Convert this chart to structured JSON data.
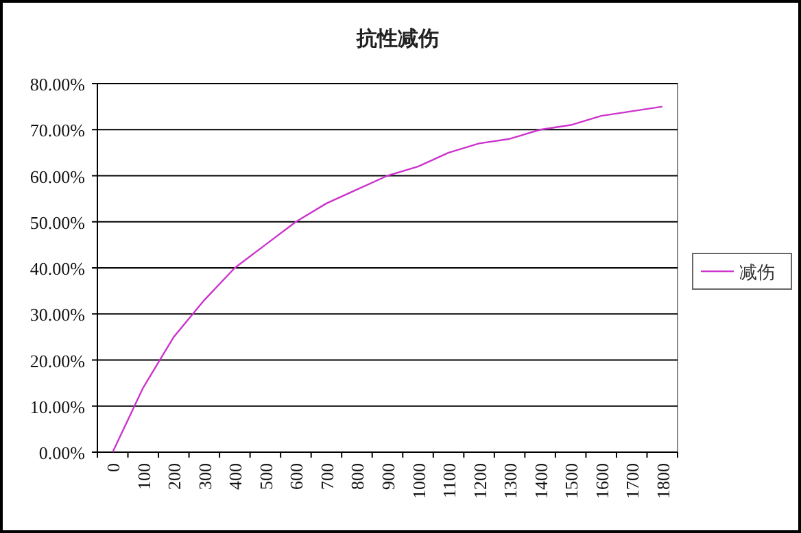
{
  "chart_data": {
    "type": "line",
    "title": "抗性减伤",
    "categories": [
      "0",
      "100",
      "200",
      "300",
      "400",
      "500",
      "600",
      "700",
      "800",
      "900",
      "1000",
      "1100",
      "1200",
      "1300",
      "1400",
      "1500",
      "1600",
      "1700",
      "1800"
    ],
    "series": [
      {
        "name": "减伤",
        "color": "#cc33cc",
        "values": [
          0,
          14,
          25,
          33,
          40,
          45,
          50,
          54,
          57,
          60,
          62,
          65,
          67,
          68,
          70,
          71,
          73,
          74,
          75
        ]
      }
    ],
    "ylim": [
      0,
      80
    ],
    "yticks": [
      {
        "value": 0,
        "label": "0.00%"
      },
      {
        "value": 10,
        "label": "10.00%"
      },
      {
        "value": 20,
        "label": "20.00%"
      },
      {
        "value": 30,
        "label": "30.00%"
      },
      {
        "value": 40,
        "label": "40.00%"
      },
      {
        "value": 50,
        "label": "50.00%"
      },
      {
        "value": 60,
        "label": "60.00%"
      },
      {
        "value": 70,
        "label": "70.00%"
      },
      {
        "value": 80,
        "label": "80.00%"
      }
    ],
    "grid": "y",
    "legend": "right"
  }
}
